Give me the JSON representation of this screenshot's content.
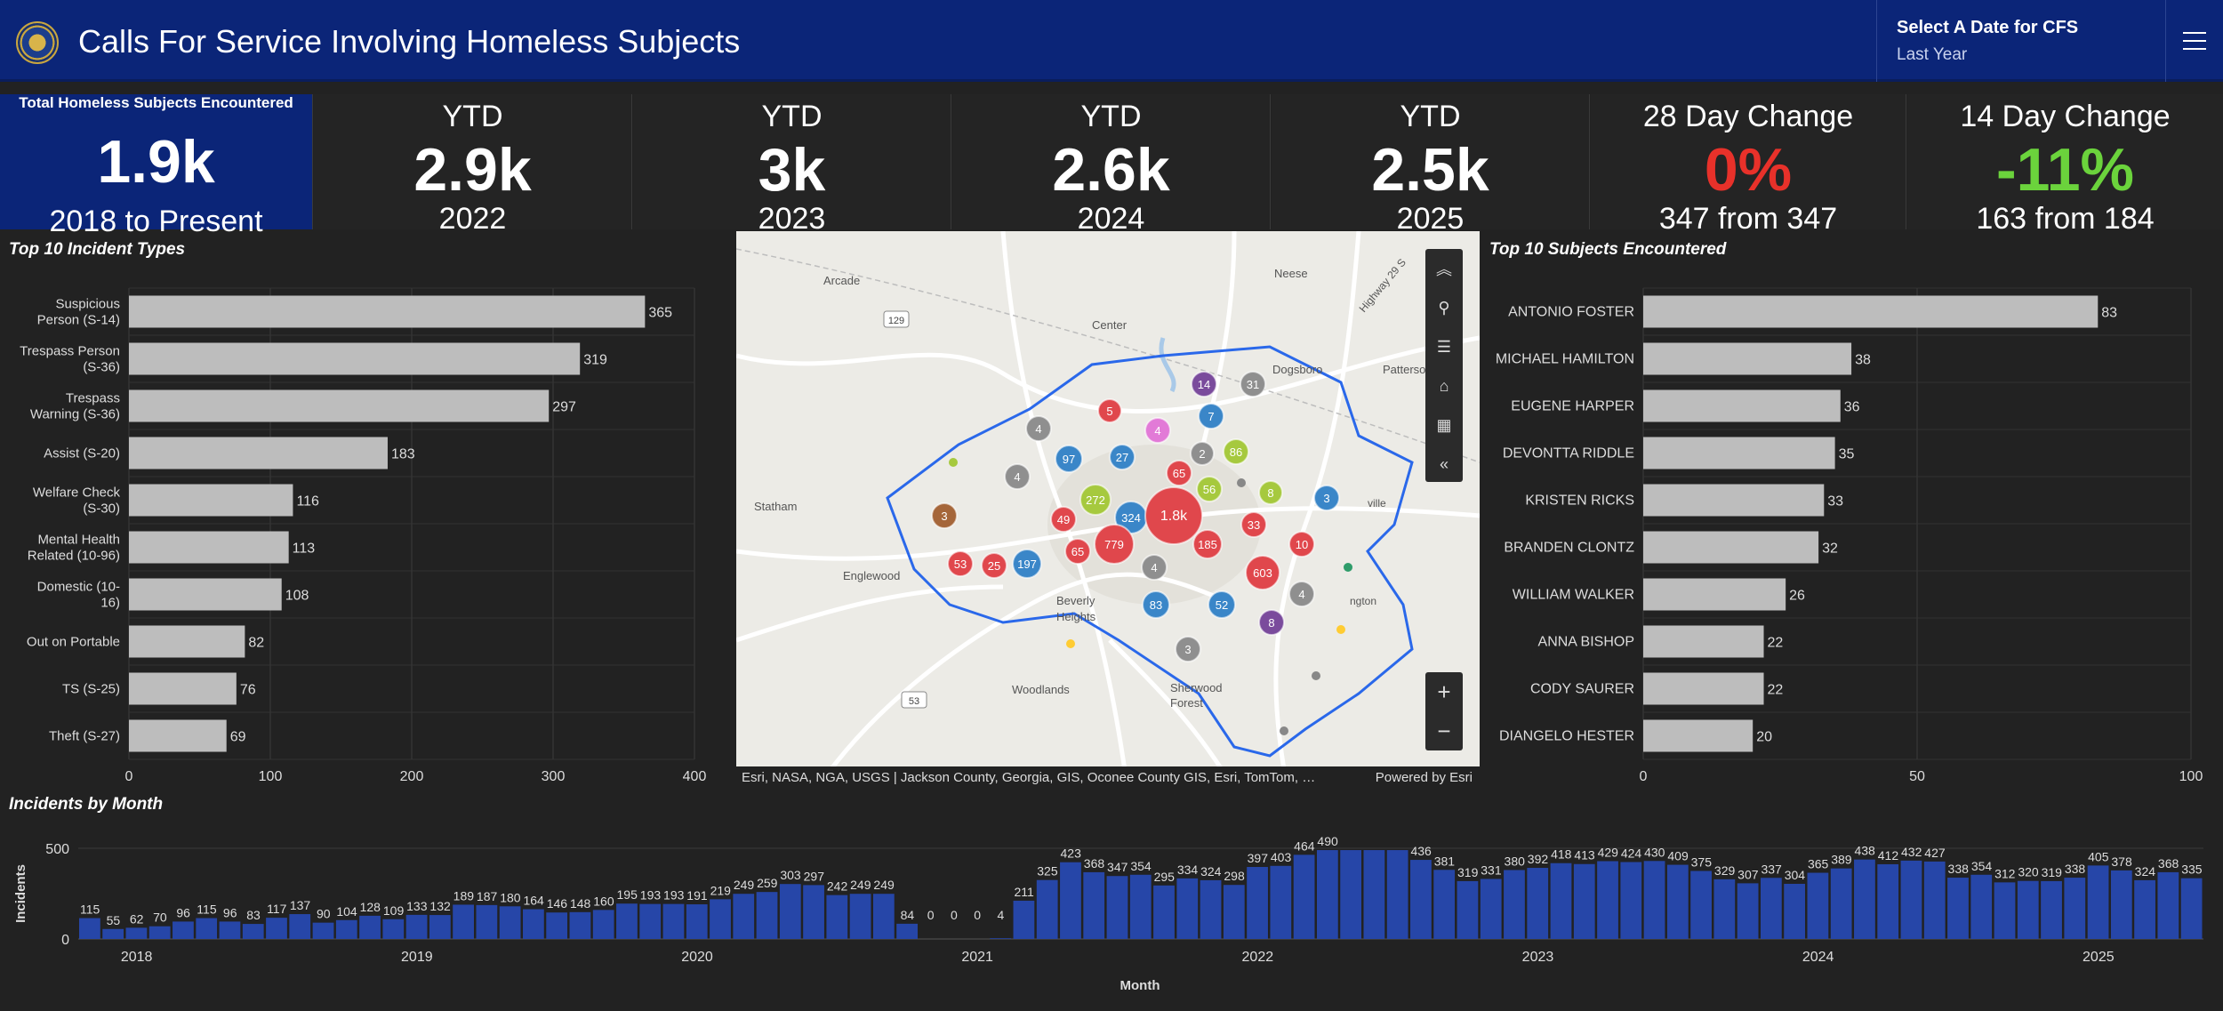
{
  "header": {
    "title": "Calls For Service Involving Homeless Subjects",
    "date_selector_label": "Select A Date for CFS",
    "date_selector_value": "Last Year"
  },
  "kpis": [
    {
      "label": "Total Homeless Subjects Encountered",
      "value": "1.9k",
      "sub": "2018 to Present"
    },
    {
      "label": "YTD",
      "value": "2.9k",
      "sub": "2022"
    },
    {
      "label": "YTD",
      "value": "3k",
      "sub": "2023"
    },
    {
      "label": "YTD",
      "value": "2.6k",
      "sub": "2024"
    },
    {
      "label": "YTD",
      "value": "2.5k",
      "sub": "2025"
    },
    {
      "label": "28 Day Change",
      "value": "0%",
      "sub": "347 from 347",
      "value_color": "#e8312a"
    },
    {
      "label": "14 Day Change",
      "value": "-11%",
      "sub": "163 from 184",
      "value_color": "#6bd33c"
    }
  ],
  "chart_data": [
    {
      "type": "bar",
      "title": "Top 10 Incident Types",
      "orientation": "horizontal",
      "categories": [
        [
          "Suspicious",
          "Person (S-14)"
        ],
        [
          "Trespass Person",
          "(S-36)"
        ],
        [
          "Trespass",
          "Warning (S-36)"
        ],
        [
          "Assist (S-20)"
        ],
        [
          "Welfare Check",
          "(S-30)"
        ],
        [
          "Mental Health",
          "Related (10-96)"
        ],
        [
          "Domestic (10-",
          "16)"
        ],
        [
          "Out on Portable"
        ],
        [
          "TS (S-25)"
        ],
        [
          "Theft (S-27)"
        ]
      ],
      "values": [
        365,
        319,
        297,
        183,
        116,
        113,
        108,
        82,
        76,
        69
      ],
      "xlim": [
        0,
        400
      ],
      "ticks": [
        "0",
        "100",
        "200",
        "300",
        "400"
      ],
      "grid": true
    },
    {
      "type": "bar",
      "title": "Top 10 Subjects Encountered",
      "orientation": "horizontal",
      "categories": [
        "ANTONIO FOSTER",
        "MICHAEL HAMILTON",
        "EUGENE HARPER",
        "DEVONTTA RIDDLE",
        "KRISTEN RICKS",
        "BRANDEN CLONTZ",
        "WILLIAM WALKER",
        "ANNA BISHOP",
        "CODY SAURER",
        "DIANGELO HESTER"
      ],
      "values": [
        83,
        38,
        36,
        35,
        33,
        32,
        26,
        22,
        22,
        20
      ],
      "xlim": [
        0,
        100
      ],
      "ticks": [
        "0",
        "50",
        "100"
      ],
      "grid": true
    },
    {
      "type": "bar",
      "title": "Incidents by Month",
      "xlabel": "Month",
      "ylabel": "Incidents",
      "ylim": [
        0,
        500
      ],
      "yticks": [
        "0",
        "500"
      ],
      "year_ticks": [
        "2018",
        "2019",
        "2020",
        "2021",
        "2022",
        "2023",
        "2024",
        "2025"
      ],
      "start_month": "2017-11",
      "values": [
        115,
        55,
        62,
        70,
        96,
        115,
        96,
        83,
        117,
        137,
        90,
        104,
        128,
        109,
        133,
        132,
        189,
        187,
        180,
        164,
        146,
        148,
        160,
        195,
        193,
        193,
        191,
        219,
        249,
        259,
        303,
        297,
        242,
        249,
        249,
        84,
        0,
        0,
        0,
        4,
        211,
        325,
        423,
        368,
        347,
        354,
        295,
        334,
        324,
        298,
        397,
        403,
        464,
        490,
        490,
        490,
        490,
        436,
        381,
        319,
        331,
        380,
        392,
        418,
        413,
        429,
        424,
        430,
        409,
        375,
        329,
        307,
        337,
        304,
        365,
        389,
        438,
        412,
        432,
        427,
        338,
        354,
        312,
        320,
        319,
        338,
        405,
        378,
        324,
        368,
        335
      ],
      "labels": [
        "115",
        "55",
        "62",
        "70",
        "96",
        "115",
        "96",
        "83",
        "117",
        "137",
        "90",
        "104",
        "128",
        "109",
        "133",
        "132",
        "189",
        "187",
        "180",
        "164",
        "146",
        "148",
        "160",
        "195",
        "193",
        "193",
        "191",
        "219",
        "249",
        "259",
        "303",
        "297",
        "242",
        "249",
        "249",
        "84",
        "0",
        "0",
        "0",
        "4",
        "211",
        "325",
        "423",
        "368",
        "347",
        "354",
        "295",
        "334",
        "324",
        "298",
        "397",
        "403",
        "464",
        "490",
        "",
        "",
        "",
        "436",
        "381",
        "319",
        "331",
        "380",
        "392",
        "418",
        "413",
        "429",
        "424",
        "430",
        "409",
        "375",
        "329",
        "307",
        "337",
        "304",
        "365",
        "389",
        "438",
        "412",
        "432",
        "427",
        "338",
        "354",
        "312",
        "320",
        "319",
        "338",
        "405",
        "378",
        "324",
        "368",
        "335"
      ],
      "color": "#2646a8",
      "grid": true
    }
  ],
  "map": {
    "places": [
      "Arcade",
      "Center",
      "Neese",
      "Dogsboro",
      "Patterson",
      "Statham",
      "Englewood",
      "Beverly",
      "Heights",
      "Woodlands",
      "Sherwood",
      "Forest",
      "Highway 29 S",
      "ville",
      "ngton"
    ],
    "road_shields": [
      "129",
      "53"
    ],
    "clusters": [
      "14",
      "31",
      "5",
      "7",
      "4",
      "4",
      "97",
      "27",
      "65",
      "2",
      "86",
      "4",
      "8",
      "3",
      "272",
      "56",
      "3",
      "49",
      "324",
      "1.8k",
      "33",
      "185",
      "10",
      "53",
      "25",
      "197",
      "65",
      "779",
      "4",
      "603",
      "4",
      "83",
      "52",
      "8",
      "3"
    ],
    "attribution": "Esri, NASA, NGA, USGS | Jackson County, Georgia, GIS, Oconee County GIS, Esri, TomTom, …",
    "powered_by": "Powered by Esri"
  }
}
